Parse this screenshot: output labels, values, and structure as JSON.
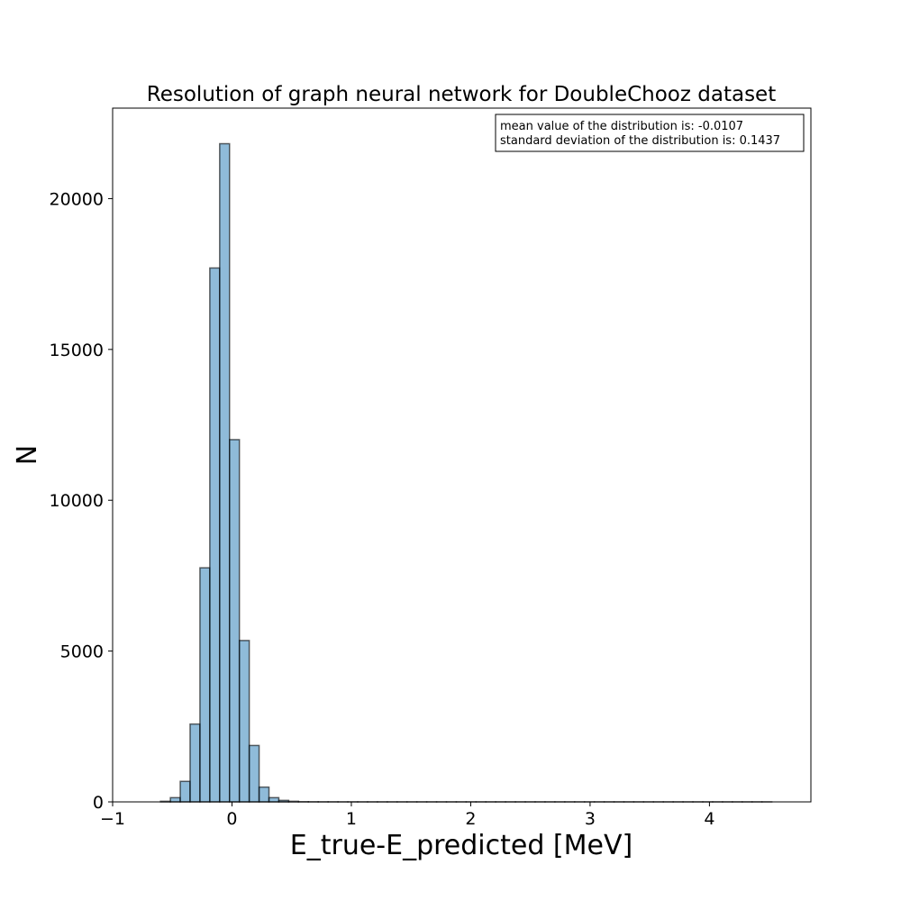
{
  "chart_data": {
    "type": "bar",
    "title": "Resolution of graph neural network for DoubleChooz dataset",
    "xlabel": "E_true-E_predicted [MeV]",
    "ylabel": "N",
    "xlim": [
      -1.0,
      4.85
    ],
    "ylim": [
      0,
      23000
    ],
    "xticks": [
      -1,
      0,
      1,
      2,
      3,
      4
    ],
    "xtick_labels": [
      "−1",
      "0",
      "1",
      "2",
      "3",
      "4"
    ],
    "yticks": [
      0,
      5000,
      10000,
      15000,
      20000
    ],
    "ytick_labels": [
      "0",
      "5000",
      "10000",
      "15000",
      "20000"
    ],
    "grid": false,
    "bar_color": "#1f77b4",
    "bar_alpha": 0.5,
    "edge_color": "#000000",
    "bin_start": -0.764,
    "bin_width": 0.0826,
    "values": [
      0,
      0,
      20,
      140,
      680,
      2580,
      7760,
      17700,
      21820,
      12010,
      5350,
      1870,
      490,
      140,
      50,
      20,
      5,
      3,
      2,
      2,
      1,
      1,
      1,
      1,
      1,
      1,
      1,
      1,
      1,
      1,
      1,
      1,
      1,
      1,
      1,
      1,
      1,
      1,
      1,
      1,
      1,
      1,
      1,
      1,
      1,
      1,
      1,
      1,
      1,
      1,
      1,
      1,
      1,
      1,
      1,
      1,
      1,
      1,
      1,
      1,
      1,
      1,
      1,
      1
    ],
    "annotation": [
      "mean value of the distribution is: -0.0107",
      "standard deviation of the distribution is: 0.1437"
    ]
  }
}
